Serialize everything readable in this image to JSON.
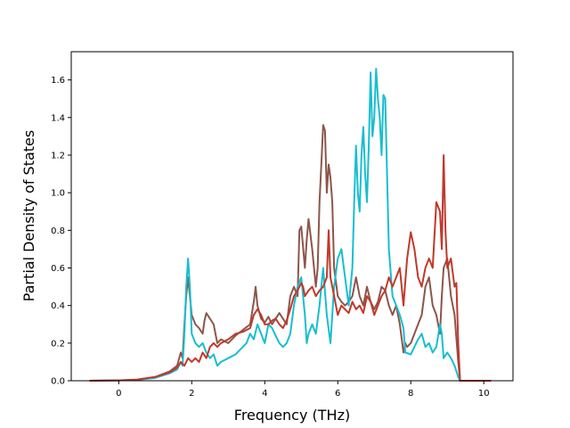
{
  "chart_data": {
    "type": "line",
    "title": "",
    "xlabel": "Frequency (THz)",
    "ylabel": "Partial Density of States",
    "xlim": [
      -1.3,
      10.8
    ],
    "ylim": [
      0.0,
      1.75
    ],
    "xticks": [
      0,
      2,
      4,
      6,
      8,
      10
    ],
    "yticks": [
      0.0,
      0.2,
      0.4,
      0.6,
      0.8,
      1.0,
      1.2,
      1.4,
      1.6
    ],
    "xtick_labels": [
      "0",
      "2",
      "4",
      "6",
      "8",
      "10"
    ],
    "ytick_labels": [
      "0.0",
      "0.2",
      "0.4",
      "0.6",
      "0.8",
      "1.0",
      "1.2",
      "1.4",
      "1.6"
    ],
    "grid": false,
    "legend": "none",
    "series": [
      {
        "color": "#8c564b",
        "points": [
          [
            -0.8,
            0
          ],
          [
            0,
            0.002
          ],
          [
            0.5,
            0.006
          ],
          [
            1.0,
            0.02
          ],
          [
            1.4,
            0.05
          ],
          [
            1.6,
            0.08
          ],
          [
            1.7,
            0.15
          ],
          [
            1.75,
            0.12
          ],
          [
            1.8,
            0.3
          ],
          [
            1.85,
            0.45
          ],
          [
            1.9,
            0.55
          ],
          [
            1.95,
            0.45
          ],
          [
            2.0,
            0.35
          ],
          [
            2.1,
            0.3
          ],
          [
            2.2,
            0.28
          ],
          [
            2.3,
            0.25
          ],
          [
            2.35,
            0.32
          ],
          [
            2.4,
            0.36
          ],
          [
            2.5,
            0.33
          ],
          [
            2.6,
            0.3
          ],
          [
            2.7,
            0.2
          ],
          [
            2.8,
            0.22
          ],
          [
            3.0,
            0.2
          ],
          [
            3.2,
            0.24
          ],
          [
            3.4,
            0.27
          ],
          [
            3.6,
            0.3
          ],
          [
            3.7,
            0.42
          ],
          [
            3.75,
            0.5
          ],
          [
            3.8,
            0.4
          ],
          [
            3.9,
            0.33
          ],
          [
            4.0,
            0.31
          ],
          [
            4.1,
            0.34
          ],
          [
            4.2,
            0.3
          ],
          [
            4.3,
            0.33
          ],
          [
            4.4,
            0.36
          ],
          [
            4.5,
            0.33
          ],
          [
            4.6,
            0.3
          ],
          [
            4.7,
            0.45
          ],
          [
            4.8,
            0.5
          ],
          [
            4.9,
            0.45
          ],
          [
            4.95,
            0.8
          ],
          [
            5.0,
            0.82
          ],
          [
            5.1,
            0.6
          ],
          [
            5.15,
            0.75
          ],
          [
            5.2,
            0.86
          ],
          [
            5.3,
            0.7
          ],
          [
            5.4,
            0.5
          ],
          [
            5.45,
            0.6
          ],
          [
            5.5,
            0.95
          ],
          [
            5.55,
            1.15
          ],
          [
            5.6,
            1.36
          ],
          [
            5.65,
            1.33
          ],
          [
            5.7,
            1.0
          ],
          [
            5.75,
            1.15
          ],
          [
            5.8,
            1.08
          ],
          [
            5.85,
            0.95
          ],
          [
            5.9,
            0.6
          ],
          [
            6.0,
            0.45
          ],
          [
            6.1,
            0.42
          ],
          [
            6.2,
            0.4
          ],
          [
            6.3,
            0.42
          ],
          [
            6.4,
            0.45
          ],
          [
            6.5,
            0.55
          ],
          [
            6.6,
            0.45
          ],
          [
            6.7,
            0.4
          ],
          [
            6.8,
            0.5
          ],
          [
            6.9,
            0.42
          ],
          [
            7.0,
            0.38
          ],
          [
            7.1,
            0.42
          ],
          [
            7.2,
            0.5
          ],
          [
            7.3,
            0.48
          ],
          [
            7.4,
            0.4
          ],
          [
            7.5,
            0.35
          ],
          [
            7.6,
            0.4
          ],
          [
            7.7,
            0.3
          ],
          [
            7.8,
            0.15
          ],
          [
            7.85,
            0.2
          ],
          [
            7.9,
            0.18
          ],
          [
            8.0,
            0.2
          ],
          [
            8.1,
            0.25
          ],
          [
            8.2,
            0.3
          ],
          [
            8.3,
            0.35
          ],
          [
            8.4,
            0.5
          ],
          [
            8.5,
            0.55
          ],
          [
            8.6,
            0.4
          ],
          [
            8.7,
            0.35
          ],
          [
            8.8,
            0.25
          ],
          [
            8.85,
            0.45
          ],
          [
            8.9,
            0.6
          ],
          [
            9.0,
            0.65
          ],
          [
            9.1,
            0.45
          ],
          [
            9.2,
            0.35
          ],
          [
            9.3,
            0.1
          ],
          [
            9.35,
            0
          ],
          [
            10.2,
            0
          ]
        ]
      },
      {
        "color": "#17becf",
        "points": [
          [
            -0.8,
            0
          ],
          [
            0,
            0.002
          ],
          [
            0.5,
            0.005
          ],
          [
            1.0,
            0.015
          ],
          [
            1.4,
            0.04
          ],
          [
            1.6,
            0.06
          ],
          [
            1.7,
            0.1
          ],
          [
            1.75,
            0.08
          ],
          [
            1.8,
            0.25
          ],
          [
            1.85,
            0.5
          ],
          [
            1.9,
            0.65
          ],
          [
            1.95,
            0.5
          ],
          [
            2.0,
            0.25
          ],
          [
            2.1,
            0.2
          ],
          [
            2.2,
            0.18
          ],
          [
            2.3,
            0.2
          ],
          [
            2.4,
            0.15
          ],
          [
            2.5,
            0.12
          ],
          [
            2.6,
            0.14
          ],
          [
            2.7,
            0.08
          ],
          [
            2.8,
            0.1
          ],
          [
            3.0,
            0.12
          ],
          [
            3.2,
            0.14
          ],
          [
            3.4,
            0.18
          ],
          [
            3.5,
            0.2
          ],
          [
            3.6,
            0.25
          ],
          [
            3.7,
            0.22
          ],
          [
            3.8,
            0.3
          ],
          [
            3.9,
            0.25
          ],
          [
            4.0,
            0.2
          ],
          [
            4.1,
            0.3
          ],
          [
            4.2,
            0.28
          ],
          [
            4.3,
            0.24
          ],
          [
            4.4,
            0.2
          ],
          [
            4.5,
            0.18
          ],
          [
            4.6,
            0.2
          ],
          [
            4.7,
            0.25
          ],
          [
            4.8,
            0.4
          ],
          [
            4.9,
            0.5
          ],
          [
            5.0,
            0.55
          ],
          [
            5.05,
            0.45
          ],
          [
            5.1,
            0.35
          ],
          [
            5.15,
            0.2
          ],
          [
            5.2,
            0.25
          ],
          [
            5.3,
            0.3
          ],
          [
            5.4,
            0.25
          ],
          [
            5.5,
            0.4
          ],
          [
            5.6,
            0.6
          ],
          [
            5.7,
            0.35
          ],
          [
            5.8,
            0.2
          ],
          [
            5.9,
            0.5
          ],
          [
            6.0,
            0.65
          ],
          [
            6.1,
            0.7
          ],
          [
            6.2,
            0.55
          ],
          [
            6.3,
            0.4
          ],
          [
            6.4,
            0.6
          ],
          [
            6.45,
            0.95
          ],
          [
            6.5,
            1.25
          ],
          [
            6.55,
            1.0
          ],
          [
            6.6,
            0.9
          ],
          [
            6.65,
            1.2
          ],
          [
            6.7,
            1.35
          ],
          [
            6.75,
            1.1
          ],
          [
            6.8,
            0.95
          ],
          [
            6.85,
            1.25
          ],
          [
            6.9,
            1.64
          ],
          [
            6.95,
            1.3
          ],
          [
            7.0,
            1.4
          ],
          [
            7.05,
            1.66
          ],
          [
            7.1,
            1.5
          ],
          [
            7.15,
            1.4
          ],
          [
            7.2,
            1.2
          ],
          [
            7.25,
            1.52
          ],
          [
            7.3,
            1.5
          ],
          [
            7.35,
            1.1
          ],
          [
            7.4,
            0.7
          ],
          [
            7.5,
            0.45
          ],
          [
            7.6,
            0.4
          ],
          [
            7.7,
            0.35
          ],
          [
            7.8,
            0.28
          ],
          [
            7.85,
            0.15
          ],
          [
            8.0,
            0.14
          ],
          [
            8.1,
            0.18
          ],
          [
            8.2,
            0.22
          ],
          [
            8.3,
            0.25
          ],
          [
            8.4,
            0.18
          ],
          [
            8.5,
            0.2
          ],
          [
            8.6,
            0.15
          ],
          [
            8.7,
            0.18
          ],
          [
            8.8,
            0.3
          ],
          [
            8.85,
            0.25
          ],
          [
            8.9,
            0.12
          ],
          [
            9.0,
            0.15
          ],
          [
            9.1,
            0.12
          ],
          [
            9.2,
            0.08
          ],
          [
            9.3,
            0.02
          ],
          [
            9.35,
            0
          ],
          [
            10.2,
            0
          ]
        ]
      },
      {
        "color": "#c0392b",
        "points": [
          [
            -0.8,
            0
          ],
          [
            0,
            0.002
          ],
          [
            0.5,
            0.006
          ],
          [
            1.0,
            0.02
          ],
          [
            1.4,
            0.045
          ],
          [
            1.6,
            0.07
          ],
          [
            1.7,
            0.1
          ],
          [
            1.8,
            0.08
          ],
          [
            1.9,
            0.12
          ],
          [
            2.0,
            0.1
          ],
          [
            2.1,
            0.12
          ],
          [
            2.2,
            0.1
          ],
          [
            2.3,
            0.15
          ],
          [
            2.4,
            0.12
          ],
          [
            2.5,
            0.18
          ],
          [
            2.6,
            0.2
          ],
          [
            2.7,
            0.18
          ],
          [
            2.8,
            0.2
          ],
          [
            3.0,
            0.22
          ],
          [
            3.2,
            0.25
          ],
          [
            3.4,
            0.26
          ],
          [
            3.6,
            0.28
          ],
          [
            3.7,
            0.35
          ],
          [
            3.8,
            0.38
          ],
          [
            3.9,
            0.35
          ],
          [
            4.0,
            0.3
          ],
          [
            4.1,
            0.3
          ],
          [
            4.2,
            0.32
          ],
          [
            4.3,
            0.33
          ],
          [
            4.4,
            0.3
          ],
          [
            4.5,
            0.28
          ],
          [
            4.6,
            0.32
          ],
          [
            4.7,
            0.38
          ],
          [
            4.8,
            0.45
          ],
          [
            4.9,
            0.48
          ],
          [
            5.0,
            0.52
          ],
          [
            5.05,
            0.5
          ],
          [
            5.1,
            0.45
          ],
          [
            5.2,
            0.48
          ],
          [
            5.3,
            0.5
          ],
          [
            5.4,
            0.45
          ],
          [
            5.5,
            0.48
          ],
          [
            5.6,
            0.5
          ],
          [
            5.7,
            0.55
          ],
          [
            5.75,
            0.8
          ],
          [
            5.8,
            0.55
          ],
          [
            5.9,
            0.45
          ],
          [
            6.0,
            0.35
          ],
          [
            6.1,
            0.4
          ],
          [
            6.2,
            0.38
          ],
          [
            6.3,
            0.36
          ],
          [
            6.4,
            0.42
          ],
          [
            6.5,
            0.38
          ],
          [
            6.6,
            0.4
          ],
          [
            6.7,
            0.36
          ],
          [
            6.8,
            0.45
          ],
          [
            6.9,
            0.42
          ],
          [
            7.0,
            0.35
          ],
          [
            7.1,
            0.4
          ],
          [
            7.2,
            0.45
          ],
          [
            7.3,
            0.48
          ],
          [
            7.4,
            0.55
          ],
          [
            7.5,
            0.5
          ],
          [
            7.6,
            0.55
          ],
          [
            7.7,
            0.6
          ],
          [
            7.75,
            0.5
          ],
          [
            7.8,
            0.4
          ],
          [
            7.9,
            0.65
          ],
          [
            8.0,
            0.79
          ],
          [
            8.1,
            0.7
          ],
          [
            8.2,
            0.55
          ],
          [
            8.3,
            0.5
          ],
          [
            8.4,
            0.6
          ],
          [
            8.5,
            0.65
          ],
          [
            8.6,
            0.6
          ],
          [
            8.7,
            0.95
          ],
          [
            8.8,
            0.9
          ],
          [
            8.85,
            0.7
          ],
          [
            8.9,
            1.2
          ],
          [
            8.95,
            0.8
          ],
          [
            9.0,
            0.6
          ],
          [
            9.1,
            0.65
          ],
          [
            9.2,
            0.5
          ],
          [
            9.25,
            0.52
          ],
          [
            9.3,
            0.2
          ],
          [
            9.35,
            0
          ],
          [
            10.2,
            0
          ]
        ]
      }
    ]
  }
}
